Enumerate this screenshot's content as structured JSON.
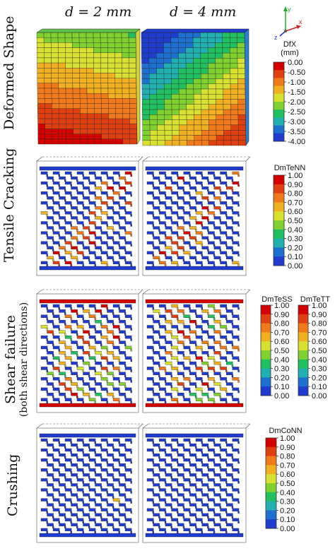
{
  "columns": [
    {
      "label": "d = 2 mm"
    },
    {
      "label": "d = 4 mm"
    }
  ],
  "rows": [
    {
      "label": "Deformed Shape",
      "sublabel": ""
    },
    {
      "label": "Tensile Cracking",
      "sublabel": ""
    },
    {
      "label": "Shear failure",
      "sublabel": "(both shear directions)"
    },
    {
      "label": "Crushing",
      "sublabel": ""
    }
  ],
  "axes_triad": {
    "y": "y",
    "x": "x",
    "z": "z"
  },
  "colorbars": {
    "dfx": {
      "title": "DfX",
      "unit": "(mm)",
      "ticks": [
        "0.00",
        "-0.50",
        "-1.00",
        "-1.50",
        "-2.00",
        "-2.50",
        "-3.00",
        "-3.50",
        "-4.00"
      ]
    },
    "dmtenn": {
      "title": "DmTeNN",
      "ticks": [
        "1.00",
        "0.90",
        "0.80",
        "0.70",
        "0.60",
        "0.50",
        "0.40",
        "0.30",
        "0.20",
        "0.10",
        "0.00"
      ]
    },
    "dmtess": {
      "title": "DmTeSS",
      "ticks": [
        "1.00",
        "0.90",
        "0.80",
        "0.70",
        "0.60",
        "0.50",
        "0.40",
        "0.30",
        "0.20",
        "0.10",
        "0.00"
      ]
    },
    "dmtett": {
      "title": "DmTeTT",
      "ticks": [
        "1.00",
        "0.90",
        "0.80",
        "0.70",
        "0.60",
        "0.50",
        "0.40",
        "0.30",
        "0.20",
        "0.10",
        "0.00"
      ]
    },
    "dmconn": {
      "title": "DmCoNN",
      "ticks": [
        "1.00",
        "0.90",
        "0.80",
        "0.70",
        "0.60",
        "0.50",
        "0.40",
        "0.30",
        "0.20",
        "0.10",
        "0.00"
      ]
    }
  },
  "colors": {
    "dfx_scale": [
      "#d40000",
      "#e04010",
      "#f07a1a",
      "#f0b020",
      "#d8e030",
      "#80d030",
      "#20c060",
      "#20b0b0",
      "#1d6fd0",
      "#1f3ccf"
    ],
    "damage_scale": [
      "#1f3ccf",
      "#1d6fd0",
      "#20b0b0",
      "#20c060",
      "#80d030",
      "#d8e030",
      "#f0b020",
      "#f07a1a",
      "#e04010",
      "#d40000"
    ]
  }
}
